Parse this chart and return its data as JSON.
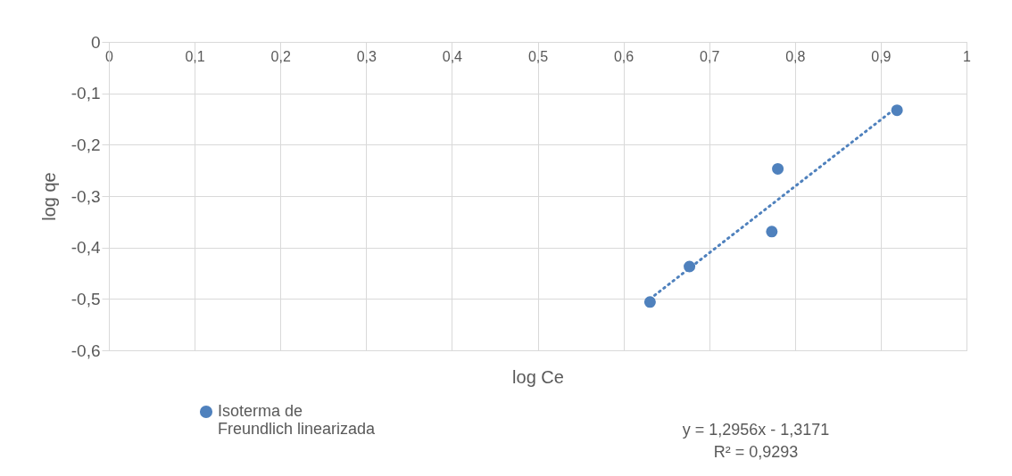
{
  "chart_data": {
    "type": "scatter",
    "xlabel": "log Ce",
    "ylabel": "log qe",
    "xlim": [
      0,
      1
    ],
    "ylim": [
      -0.6,
      0
    ],
    "xticks": [
      0,
      {
        "value": 0.1,
        "label": "0,1"
      },
      {
        "value": 0.2,
        "label": "0,2"
      },
      {
        "value": 0.3,
        "label": "0,3"
      },
      {
        "value": 0.4,
        "label": "0,4"
      },
      {
        "value": 0.5,
        "label": "0,5"
      },
      {
        "value": 0.6,
        "label": "0,6"
      },
      {
        "value": 0.7,
        "label": "0,7"
      },
      {
        "value": 0.8,
        "label": "0,8"
      },
      {
        "value": 0.9,
        "label": "0,9"
      },
      1
    ],
    "yticks": [
      0,
      {
        "value": -0.1,
        "label": "-0,1"
      },
      {
        "value": -0.2,
        "label": "-0,2"
      },
      {
        "value": -0.3,
        "label": "-0,3"
      },
      {
        "value": -0.4,
        "label": "-0,4"
      },
      {
        "value": -0.5,
        "label": "-0,5"
      },
      {
        "value": -0.6,
        "label": "-0,6"
      }
    ],
    "grid": true,
    "legend": "bottom",
    "series": [
      {
        "name": "Isoterma de Freundlich linearizada",
        "marker": "circle",
        "color": "#4f81bd",
        "x": [
          0.631,
          0.677,
          0.773,
          0.78,
          0.919
        ],
        "values": [
          -0.506,
          -0.437,
          -0.369,
          -0.247,
          -0.133
        ]
      },
      {
        "type": "line",
        "color": "#4f81bd",
        "line_style": "dotted",
        "marker": "none",
        "x": [
          0.631,
          0.919
        ],
        "values": [
          -0.5,
          -0.127
        ]
      }
    ],
    "annotations": [
      "y = 1,2956x - 1,3171",
      "R² = 0,9293"
    ]
  }
}
